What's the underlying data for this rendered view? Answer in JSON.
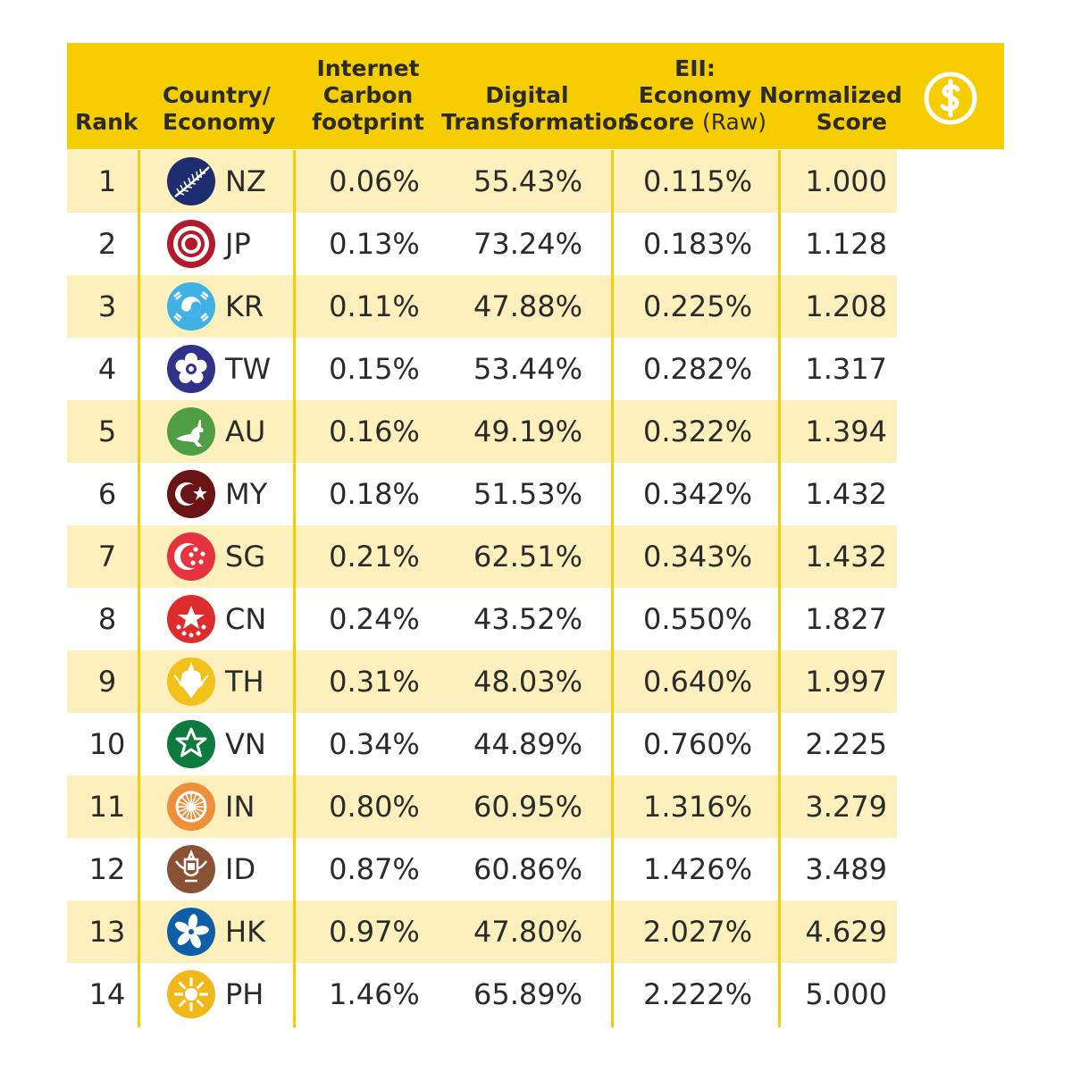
{
  "header": {
    "rank": "Rank",
    "country_line1": "Country/",
    "country_line2": "Economy",
    "carbon_line1": "Internet",
    "carbon_line2": "Carbon",
    "carbon_line3": "footprint",
    "digital_line1": "Digital",
    "digital_line2": "Transformation",
    "eii_line1": "EII:",
    "eii_line2": "Economy",
    "eii_line3a": "Score",
    "eii_line3b": "(Raw)",
    "norm_line1": "Normalized",
    "norm_line2": "Score",
    "icon": "dollar-coin-icon"
  },
  "colors": {
    "header": "#f5cd00",
    "alt_row": "#fdf0bc",
    "divider": "#f3cd10"
  },
  "chart_data": {
    "type": "table",
    "columns": [
      "Rank",
      "Country/ Economy",
      "Internet Carbon footprint",
      "Digital Transformation",
      "EII: Economy Score (Raw)",
      "Normalized Score"
    ],
    "rows": [
      {
        "rank": "1",
        "code": "NZ",
        "emblem": "silver-fern",
        "carbon": "0.06%",
        "digital": "55.43%",
        "eii": "0.115%",
        "norm": "1.000"
      },
      {
        "rank": "2",
        "code": "JP",
        "emblem": "target",
        "carbon": "0.13%",
        "digital": "73.24%",
        "eii": "0.183%",
        "norm": "1.128"
      },
      {
        "rank": "3",
        "code": "KR",
        "emblem": "taegeuk",
        "carbon": "0.11%",
        "digital": "47.88%",
        "eii": "0.225%",
        "norm": "1.208"
      },
      {
        "rank": "4",
        "code": "TW",
        "emblem": "plum-blossom",
        "carbon": "0.15%",
        "digital": "53.44%",
        "eii": "0.282%",
        "norm": "1.317"
      },
      {
        "rank": "5",
        "code": "AU",
        "emblem": "kangaroo",
        "carbon": "0.16%",
        "digital": "49.19%",
        "eii": "0.322%",
        "norm": "1.394"
      },
      {
        "rank": "6",
        "code": "MY",
        "emblem": "crescent-star",
        "carbon": "0.18%",
        "digital": "51.53%",
        "eii": "0.342%",
        "norm": "1.432"
      },
      {
        "rank": "7",
        "code": "SG",
        "emblem": "crescent-five-stars",
        "carbon": "0.21%",
        "digital": "62.51%",
        "eii": "0.343%",
        "norm": "1.432"
      },
      {
        "rank": "8",
        "code": "CN",
        "emblem": "stars",
        "carbon": "0.24%",
        "digital": "43.52%",
        "eii": "0.550%",
        "norm": "1.827"
      },
      {
        "rank": "9",
        "code": "TH",
        "emblem": "garuda",
        "carbon": "0.31%",
        "digital": "48.03%",
        "eii": "0.640%",
        "norm": "1.997"
      },
      {
        "rank": "10",
        "code": "VN",
        "emblem": "star",
        "carbon": "0.34%",
        "digital": "44.89%",
        "eii": "0.760%",
        "norm": "2.225"
      },
      {
        "rank": "11",
        "code": "IN",
        "emblem": "chakra",
        "carbon": "0.80%",
        "digital": "60.95%",
        "eii": "1.316%",
        "norm": "3.279"
      },
      {
        "rank": "12",
        "code": "ID",
        "emblem": "garuda-pancasila",
        "carbon": "0.87%",
        "digital": "60.86%",
        "eii": "1.426%",
        "norm": "3.489"
      },
      {
        "rank": "13",
        "code": "HK",
        "emblem": "bauhinia",
        "carbon": "0.97%",
        "digital": "47.80%",
        "eii": "2.027%",
        "norm": "4.629"
      },
      {
        "rank": "14",
        "code": "PH",
        "emblem": "sun",
        "carbon": "1.46%",
        "digital": "65.89%",
        "eii": "2.222%",
        "norm": "5.000"
      }
    ]
  }
}
